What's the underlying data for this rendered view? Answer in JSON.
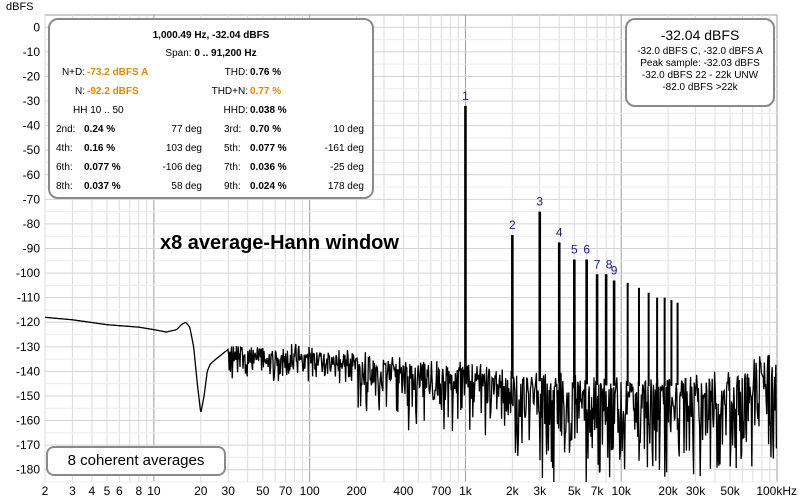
{
  "chart_data": {
    "type": "line",
    "title": "",
    "xlabel": "",
    "ylabel": "dBFS",
    "x_scale": "log",
    "xlim": [
      2,
      100000
    ],
    "ylim": [
      -185,
      5
    ],
    "y_ticks": [
      0,
      -10,
      -20,
      -30,
      -40,
      -50,
      -60,
      -70,
      -80,
      -90,
      -100,
      -110,
      -120,
      -130,
      -140,
      -150,
      -160,
      -170,
      -180
    ],
    "x_ticks": [
      {
        "v": 2,
        "label": "2"
      },
      {
        "v": 3,
        "label": "3"
      },
      {
        "v": 4,
        "label": "4"
      },
      {
        "v": 5,
        "label": "5"
      },
      {
        "v": 6,
        "label": "6"
      },
      {
        "v": 8,
        "label": "8"
      },
      {
        "v": 10,
        "label": "10"
      },
      {
        "v": 20,
        "label": "20"
      },
      {
        "v": 30,
        "label": "30"
      },
      {
        "v": 50,
        "label": "50"
      },
      {
        "v": 70,
        "label": "70"
      },
      {
        "v": 100,
        "label": "100"
      },
      {
        "v": 200,
        "label": "200"
      },
      {
        "v": 400,
        "label": "400"
      },
      {
        "v": 700,
        "label": "700"
      },
      {
        "v": 1000,
        "label": "1k"
      },
      {
        "v": 2000,
        "label": "2k"
      },
      {
        "v": 3000,
        "label": "3k"
      },
      {
        "v": 5000,
        "label": "5k"
      },
      {
        "v": 7000,
        "label": "7k"
      },
      {
        "v": 10000,
        "label": "10k"
      },
      {
        "v": 20000,
        "label": "20k"
      },
      {
        "v": 30000,
        "label": "30k"
      },
      {
        "v": 50000,
        "label": "50k"
      },
      {
        "v": 100000,
        "label": "100kHz"
      }
    ],
    "series": [
      {
        "color": "#000000",
        "envelope": [
          [
            2,
            -118
          ],
          [
            3,
            -119
          ],
          [
            5,
            -121
          ],
          [
            8,
            -122
          ],
          [
            10,
            -123
          ],
          [
            12,
            -124
          ],
          [
            14,
            -123
          ],
          [
            15,
            -121
          ],
          [
            16,
            -120
          ],
          [
            17,
            -122
          ],
          [
            18,
            -130
          ],
          [
            19,
            -145
          ],
          [
            20,
            -157
          ],
          [
            21,
            -150
          ],
          [
            22,
            -140
          ],
          [
            23,
            -137
          ],
          [
            25,
            -135
          ],
          [
            30,
            -131
          ],
          [
            35,
            -130
          ],
          [
            40,
            -131
          ],
          [
            50,
            -132
          ],
          [
            60,
            -133
          ],
          [
            70,
            -132
          ],
          [
            80,
            -131
          ],
          [
            100,
            -132
          ],
          [
            150,
            -133
          ],
          [
            200,
            -134
          ],
          [
            300,
            -135
          ],
          [
            500,
            -136
          ],
          [
            700,
            -137
          ],
          [
            1000,
            -138
          ],
          [
            2000,
            -141
          ],
          [
            3000,
            -142
          ],
          [
            5000,
            -143
          ],
          [
            10000,
            -144
          ],
          [
            20000,
            -144
          ],
          [
            40000,
            -142
          ],
          [
            60000,
            -138
          ],
          [
            80000,
            -135
          ],
          [
            100000,
            -133
          ]
        ]
      }
    ],
    "harmonics": [
      {
        "n": "1",
        "freq": 1000,
        "level": -32.0
      },
      {
        "n": "2",
        "freq": 2000,
        "level": -84.5
      },
      {
        "n": "3",
        "freq": 3000,
        "level": -75.0
      },
      {
        "n": "4",
        "freq": 4000,
        "level": -87.5
      },
      {
        "n": "5",
        "freq": 5000,
        "level": -94.5
      },
      {
        "n": "6",
        "freq": 6000,
        "level": -94.5
      },
      {
        "n": "7",
        "freq": 7000,
        "level": -100.5
      },
      {
        "n": "8",
        "freq": 8000,
        "level": -100.5
      },
      {
        "n": "9",
        "freq": 9000,
        "level": -103.0
      }
    ],
    "extra_spurs": [
      {
        "freq": 11000,
        "level": -104
      },
      {
        "freq": 13000,
        "level": -106
      },
      {
        "freq": 15000,
        "level": -108
      },
      {
        "freq": 17000,
        "level": -110
      },
      {
        "freq": 19000,
        "level": -110
      },
      {
        "freq": 21000,
        "level": -111
      },
      {
        "freq": 23000,
        "level": -112
      }
    ]
  },
  "stats": {
    "header1": "1,000.49 Hz, -32.04 dBFS",
    "header2_label": "Span:",
    "header2_value": "0 .. 91,200 Hz",
    "nd_label": "N+D:",
    "nd_value": "-73.2 dBFS A",
    "thd_label": "THD:",
    "thd_value": "0.76 %",
    "n_label": "N:",
    "n_value": "-92.2 dBFS",
    "thdn_label": "THD+N:",
    "thdn_value": "0.77 %",
    "hh_label": "HH 10 .. 50",
    "hhd_label": "HHD:",
    "hhd_value": "0.038 %",
    "rows": [
      {
        "l1": "2nd:",
        "v1": "0.24 %",
        "d1": "77 deg",
        "l2": "3rd:",
        "v2": "0.70 %",
        "d2": "10 deg"
      },
      {
        "l1": "4th:",
        "v1": "0.16 %",
        "d1": "103 deg",
        "l2": "5th:",
        "v2": "0.077 %",
        "d2": "-161 deg"
      },
      {
        "l1": "6th:",
        "v1": "0.077 %",
        "d1": "-106 deg",
        "l2": "7th:",
        "v2": "0.036 %",
        "d2": "-25 deg"
      },
      {
        "l1": "8th:",
        "v1": "0.037 %",
        "d1": "58 deg",
        "l2": "9th:",
        "v2": "0.024 %",
        "d2": "178 deg"
      }
    ]
  },
  "level": {
    "main": "-32.04 dBFS",
    "line1": "-32.0 dBFS C, -32.0 dBFS A",
    "line2": "Peak sample: -32.03 dBFS",
    "line3": "-32.0 dBFS 22 - 22k UNW",
    "line4": "-82.0 dBFS >22k"
  },
  "annotation": "x8 average-Hann window",
  "averages_label": "8 coherent averages",
  "unit_label": "dBFS"
}
